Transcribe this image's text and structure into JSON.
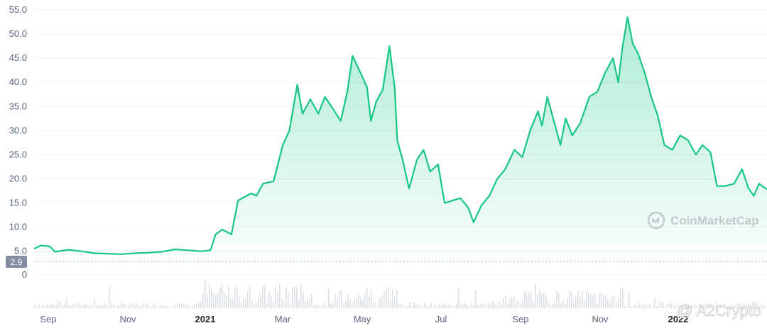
{
  "chart_data": {
    "type": "area",
    "y_ticks": [
      "55.0",
      "50.0",
      "45.0",
      "40.0",
      "35.0",
      "30.0",
      "25.0",
      "20.0",
      "15.0",
      "10.0",
      "5.0"
    ],
    "ylim": [
      2.9,
      55
    ],
    "x_ticks": [
      {
        "label": "Sep",
        "bold": false
      },
      {
        "label": "Nov",
        "bold": false
      },
      {
        "label": "2021",
        "bold": true
      },
      {
        "label": "Mar",
        "bold": false
      },
      {
        "label": "May",
        "bold": false
      },
      {
        "label": "Jul",
        "bold": false
      },
      {
        "label": "Sep",
        "bold": false
      },
      {
        "label": "Nov",
        "bold": false
      },
      {
        "label": "2022",
        "bold": true
      }
    ],
    "xlim": [
      "2020-08-20",
      "2022-02-28"
    ],
    "reference_label": "2.9",
    "volume_axis_label": "0",
    "series": [
      {
        "color": "#16c784",
        "points": [
          [
            "2020-08-20",
            5.5
          ],
          [
            "2020-08-25",
            6.2
          ],
          [
            "2020-09-01",
            6.0
          ],
          [
            "2020-09-05",
            4.9
          ],
          [
            "2020-09-15",
            5.3
          ],
          [
            "2020-09-25",
            5.0
          ],
          [
            "2020-10-05",
            4.6
          ],
          [
            "2020-10-15",
            4.5
          ],
          [
            "2020-10-25",
            4.4
          ],
          [
            "2020-11-05",
            4.6
          ],
          [
            "2020-11-15",
            4.7
          ],
          [
            "2020-11-25",
            4.9
          ],
          [
            "2020-12-05",
            5.4
          ],
          [
            "2020-12-15",
            5.2
          ],
          [
            "2020-12-25",
            5.0
          ],
          [
            "2021-01-01",
            5.2
          ],
          [
            "2021-01-05",
            8.5
          ],
          [
            "2021-01-10",
            9.5
          ],
          [
            "2021-01-17",
            8.5
          ],
          [
            "2021-01-22",
            15.5
          ],
          [
            "2021-02-01",
            17.0
          ],
          [
            "2021-02-05",
            16.5
          ],
          [
            "2021-02-10",
            19.0
          ],
          [
            "2021-02-18",
            19.5
          ],
          [
            "2021-02-25",
            27.0
          ],
          [
            "2021-03-02",
            30.0
          ],
          [
            "2021-03-08",
            39.5
          ],
          [
            "2021-03-12",
            33.5
          ],
          [
            "2021-03-18",
            36.5
          ],
          [
            "2021-03-24",
            33.5
          ],
          [
            "2021-03-29",
            37.0
          ],
          [
            "2021-04-03",
            35.0
          ],
          [
            "2021-04-10",
            32.0
          ],
          [
            "2021-04-15",
            38.0
          ],
          [
            "2021-04-19",
            45.5
          ],
          [
            "2021-04-25",
            42.0
          ],
          [
            "2021-04-30",
            39.0
          ],
          [
            "2021-05-03",
            32.0
          ],
          [
            "2021-05-07",
            36.0
          ],
          [
            "2021-05-12",
            38.5
          ],
          [
            "2021-05-17",
            47.5
          ],
          [
            "2021-05-21",
            39.0
          ],
          [
            "2021-05-23",
            28.0
          ],
          [
            "2021-05-27",
            24.0
          ],
          [
            "2021-06-01",
            18.0
          ],
          [
            "2021-06-07",
            24.0
          ],
          [
            "2021-06-12",
            26.0
          ],
          [
            "2021-06-17",
            21.5
          ],
          [
            "2021-06-23",
            23.0
          ],
          [
            "2021-06-28",
            15.0
          ],
          [
            "2021-07-04",
            15.5
          ],
          [
            "2021-07-10",
            16.0
          ],
          [
            "2021-07-16",
            14.0
          ],
          [
            "2021-07-20",
            11.0
          ],
          [
            "2021-07-26",
            14.5
          ],
          [
            "2021-08-01",
            16.5
          ],
          [
            "2021-08-07",
            20.0
          ],
          [
            "2021-08-13",
            22.0
          ],
          [
            "2021-08-20",
            26.0
          ],
          [
            "2021-08-26",
            24.5
          ],
          [
            "2021-09-01",
            30.0
          ],
          [
            "2021-09-07",
            34.0
          ],
          [
            "2021-09-10",
            31.0
          ],
          [
            "2021-09-14",
            37.0
          ],
          [
            "2021-09-20",
            31.0
          ],
          [
            "2021-09-24",
            27.0
          ],
          [
            "2021-09-28",
            32.5
          ],
          [
            "2021-10-03",
            29.0
          ],
          [
            "2021-10-09",
            31.5
          ],
          [
            "2021-10-16",
            37.0
          ],
          [
            "2021-10-22",
            38.0
          ],
          [
            "2021-10-28",
            42.0
          ],
          [
            "2021-11-03",
            45.0
          ],
          [
            "2021-11-07",
            40.0
          ],
          [
            "2021-11-10",
            47.0
          ],
          [
            "2021-11-14",
            53.5
          ],
          [
            "2021-11-18",
            48.0
          ],
          [
            "2021-11-22",
            46.0
          ],
          [
            "2021-11-27",
            42.0
          ],
          [
            "2021-12-02",
            37.0
          ],
          [
            "2021-12-07",
            33.0
          ],
          [
            "2021-12-12",
            27.0
          ],
          [
            "2021-12-18",
            26.0
          ],
          [
            "2021-12-24",
            29.0
          ],
          [
            "2021-12-30",
            28.0
          ],
          [
            "2022-01-05",
            25.0
          ],
          [
            "2022-01-10",
            27.0
          ],
          [
            "2022-01-16",
            25.5
          ],
          [
            "2022-01-21",
            18.5
          ],
          [
            "2022-01-27",
            18.5
          ],
          [
            "2022-02-03",
            19.0
          ],
          [
            "2022-02-09",
            22.0
          ],
          [
            "2022-02-14",
            18.0
          ],
          [
            "2022-02-18",
            16.5
          ],
          [
            "2022-02-22",
            19.0
          ],
          [
            "2022-02-28",
            17.8
          ]
        ]
      }
    ]
  },
  "watermarks": {
    "brand": "CoinMarketCap",
    "brand_icon": "coinmarketcap-logo-icon",
    "source": "@ A2Crypto"
  }
}
